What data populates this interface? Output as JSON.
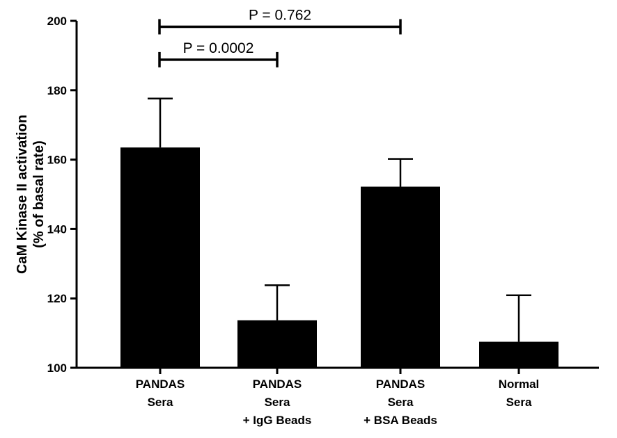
{
  "chart_data": {
    "type": "bar",
    "categories": [
      [
        "PANDAS",
        "Sera"
      ],
      [
        "PANDAS",
        "Sera",
        "+ IgG Beads"
      ],
      [
        "PANDAS",
        "Sera",
        "+ BSA Beads"
      ],
      [
        "Normal",
        "Sera"
      ]
    ],
    "values": [
      163.5,
      113.7,
      152.2,
      107.5
    ],
    "error_upper": [
      177.6,
      123.8,
      160.2,
      120.9
    ],
    "ylabel_lines": [
      "CaM Kinase II activation",
      "(% of basal rate)"
    ],
    "xlabel": "",
    "title": "",
    "ylim": [
      100,
      200
    ],
    "yticks": [
      100,
      120,
      140,
      160,
      180,
      200
    ],
    "ytick_labels": [
      "100",
      "120",
      "140",
      "160",
      "180",
      "200"
    ],
    "bar_color": "#000000",
    "grid": false,
    "annotations": [
      {
        "text": "P = 0.762",
        "from_category": 0,
        "to_category": 2,
        "y_level": 198.3
      },
      {
        "text": "P = 0.0002",
        "from_category": 0,
        "to_category": 1,
        "y_level": 188.8
      }
    ]
  }
}
